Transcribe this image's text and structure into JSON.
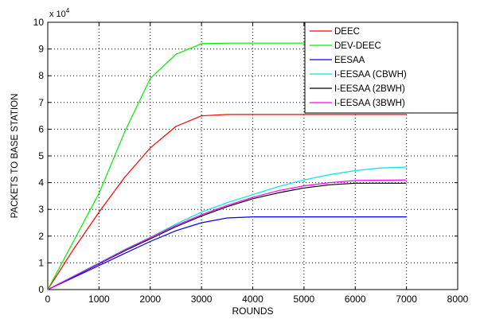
{
  "chart_data": {
    "type": "line",
    "xlabel": "ROUNDS",
    "ylabel": "PACKETS TO BASE STATION",
    "y_multiplier_label": "x 10",
    "y_multiplier_exponent": "4",
    "xlim": [
      0,
      8000
    ],
    "ylim": [
      0,
      10
    ],
    "x_ticks": [
      "0",
      "1000",
      "2000",
      "3000",
      "4000",
      "5000",
      "6000",
      "7000",
      "8000"
    ],
    "y_ticks": [
      "0",
      "1",
      "2",
      "3",
      "4",
      "5",
      "6",
      "7",
      "8",
      "9",
      "10"
    ],
    "grid": true,
    "legend_position": "top-right",
    "series": [
      {
        "name": "DEEC",
        "color": "#ff0000",
        "points": [
          [
            0,
            0
          ],
          [
            500,
            1.5
          ],
          [
            1000,
            2.9
          ],
          [
            1500,
            4.2
          ],
          [
            2000,
            5.3
          ],
          [
            2500,
            6.1
          ],
          [
            3000,
            6.5
          ],
          [
            3500,
            6.55
          ],
          [
            4000,
            6.55
          ],
          [
            5000,
            6.55
          ],
          [
            6000,
            6.55
          ],
          [
            7000,
            6.55
          ]
        ]
      },
      {
        "name": "DEV-DEEC",
        "color": "#00ee00",
        "points": [
          [
            0,
            0
          ],
          [
            500,
            1.8
          ],
          [
            1000,
            3.6
          ],
          [
            1500,
            5.9
          ],
          [
            2000,
            7.9
          ],
          [
            2500,
            8.8
          ],
          [
            3000,
            9.2
          ],
          [
            3500,
            9.22
          ],
          [
            4000,
            9.22
          ],
          [
            5000,
            9.22
          ],
          [
            6000,
            9.22
          ],
          [
            7000,
            9.22
          ]
        ]
      },
      {
        "name": "EESAA",
        "color": "#0000ff",
        "points": [
          [
            0,
            0
          ],
          [
            500,
            0.45
          ],
          [
            1000,
            0.9
          ],
          [
            1500,
            1.35
          ],
          [
            2000,
            1.8
          ],
          [
            2500,
            2.2
          ],
          [
            3000,
            2.5
          ],
          [
            3500,
            2.68
          ],
          [
            4000,
            2.72
          ],
          [
            5000,
            2.72
          ],
          [
            6000,
            2.72
          ],
          [
            7000,
            2.72
          ]
        ]
      },
      {
        "name": "I-EESAA (CBWH)",
        "color": "#00e5e5",
        "points": [
          [
            0,
            0
          ],
          [
            500,
            0.5
          ],
          [
            1000,
            1.0
          ],
          [
            1500,
            1.5
          ],
          [
            2000,
            1.95
          ],
          [
            2500,
            2.45
          ],
          [
            3000,
            2.9
          ],
          [
            3500,
            3.25
          ],
          [
            4000,
            3.55
          ],
          [
            4500,
            3.85
          ],
          [
            5000,
            4.1
          ],
          [
            5500,
            4.3
          ],
          [
            6000,
            4.45
          ],
          [
            6500,
            4.55
          ],
          [
            7000,
            4.58
          ]
        ]
      },
      {
        "name": "I-EESAA (2BWH)",
        "color": "#000000",
        "points": [
          [
            0,
            0
          ],
          [
            500,
            0.48
          ],
          [
            1000,
            0.96
          ],
          [
            1500,
            1.45
          ],
          [
            2000,
            1.9
          ],
          [
            2500,
            2.35
          ],
          [
            3000,
            2.75
          ],
          [
            3500,
            3.1
          ],
          [
            4000,
            3.4
          ],
          [
            4500,
            3.62
          ],
          [
            5000,
            3.8
          ],
          [
            5500,
            3.92
          ],
          [
            6000,
            3.98
          ],
          [
            7000,
            3.98
          ]
        ]
      },
      {
        "name": "I-EESAA (3BWH)",
        "color": "#ff00ff",
        "points": [
          [
            0,
            0
          ],
          [
            500,
            0.49
          ],
          [
            1000,
            0.98
          ],
          [
            1500,
            1.48
          ],
          [
            2000,
            1.95
          ],
          [
            2500,
            2.4
          ],
          [
            3000,
            2.8
          ],
          [
            3500,
            3.15
          ],
          [
            4000,
            3.45
          ],
          [
            4500,
            3.7
          ],
          [
            5000,
            3.88
          ],
          [
            5500,
            4.0
          ],
          [
            6000,
            4.08
          ],
          [
            7000,
            4.1
          ]
        ]
      }
    ]
  }
}
